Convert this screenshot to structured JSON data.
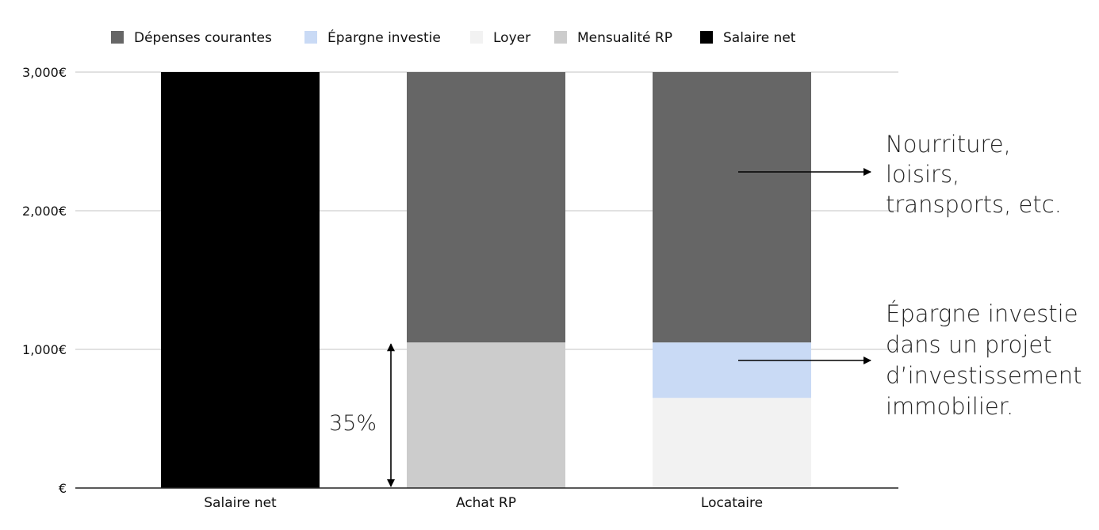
{
  "chart_data": {
    "type": "bar",
    "stacked": true,
    "categories": [
      "Salaire net",
      "Achat RP",
      "Locataire"
    ],
    "series": [
      {
        "name": "Dépenses courantes",
        "color": "#666666",
        "values": [
          0,
          1950,
          1950
        ]
      },
      {
        "name": "Épargne investie",
        "color": "#c9daf5",
        "values": [
          0,
          0,
          400
        ]
      },
      {
        "name": "Loyer",
        "color": "#f2f2f2",
        "values": [
          0,
          0,
          650
        ]
      },
      {
        "name": "Mensualité RP",
        "color": "#cccccc",
        "values": [
          0,
          1050,
          0
        ]
      },
      {
        "name": "Salaire net",
        "color": "#000000",
        "values": [
          3000,
          0,
          0
        ]
      }
    ],
    "stack_order_bottom_to_top": [
      "Mensualité RP",
      "Loyer",
      "Épargne investie",
      "Dépenses courantes",
      "Salaire net"
    ],
    "ylim": [
      0,
      3000
    ],
    "yticks": [
      {
        "value": 0,
        "label": "€"
      },
      {
        "value": 1000,
        "label": "1,000€"
      },
      {
        "value": 2000,
        "label": "2,000€"
      },
      {
        "value": 3000,
        "label": "3,000€"
      }
    ],
    "grid": true,
    "legend_position": "top",
    "annotations": {
      "percent_label": "35%",
      "percent_range": [
        0,
        1050
      ],
      "depenses_note": [
        "Nourriture,",
        "loisirs,",
        "transports, etc."
      ],
      "epargne_note": [
        "Épargne investie",
        "dans un projet",
        "d’investissement",
        "immobilier."
      ]
    }
  }
}
